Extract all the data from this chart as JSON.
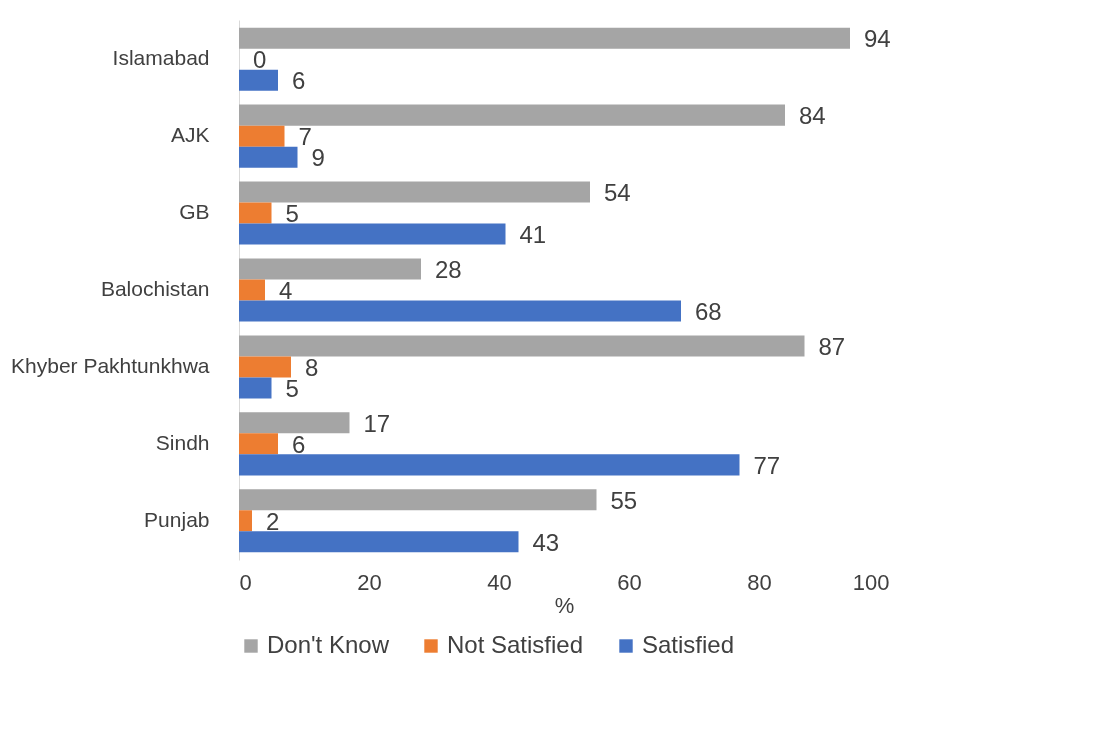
{
  "chart_data": {
    "type": "bar",
    "orientation": "horizontal",
    "xlabel": "%",
    "categories": [
      "Islamabad",
      "AJK",
      "GB",
      "Balochistan",
      "Khyber Pakhtunkhwa",
      "Sindh",
      "Punjab"
    ],
    "series": [
      {
        "name": "Don't Know",
        "color": "#a5a5a5",
        "values": [
          94,
          84,
          54,
          28,
          87,
          17,
          55
        ]
      },
      {
        "name": "Not Satisfied",
        "color": "#ed7d31",
        "values": [
          0,
          7,
          5,
          4,
          8,
          6,
          2
        ]
      },
      {
        "name": "Satisfied",
        "color": "#4472c4",
        "values": [
          6,
          9,
          41,
          68,
          5,
          77,
          43
        ]
      }
    ],
    "xlim": [
      0,
      100
    ],
    "xticks": [
      0,
      20,
      40,
      60,
      80,
      100
    ],
    "grid": false,
    "legend": "bottom",
    "data_labels": true
  }
}
